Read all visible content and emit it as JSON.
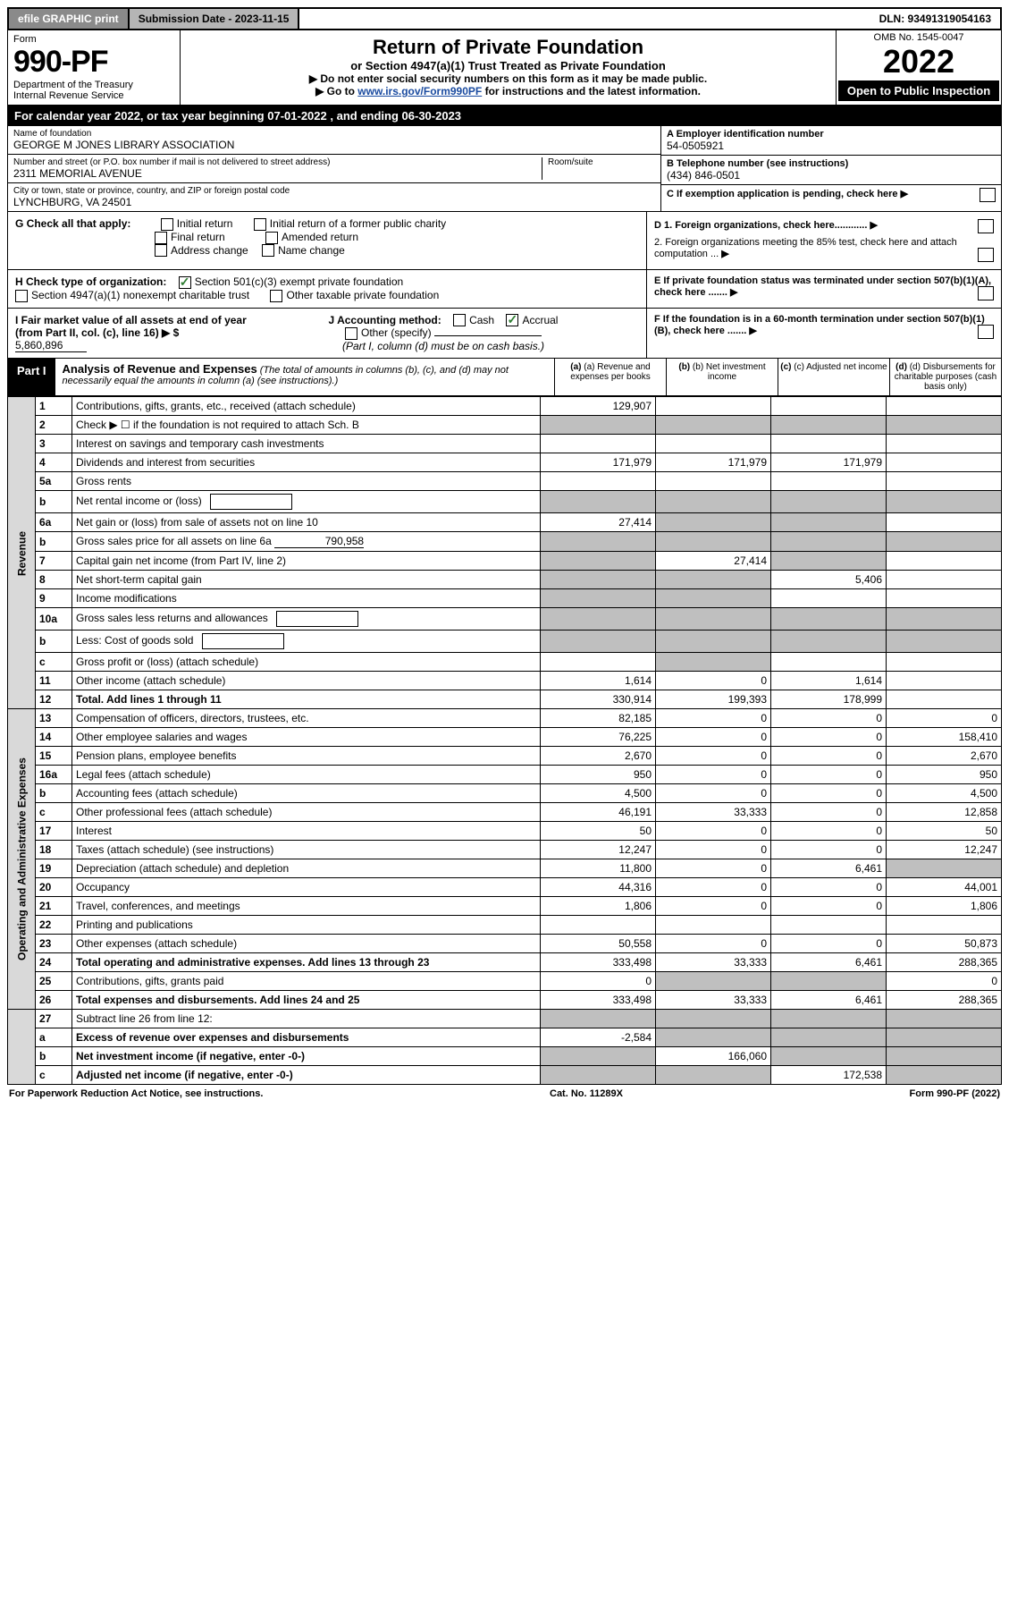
{
  "topbar": {
    "efile": "efile GRAPHIC print",
    "submission_label": "Submission Date - 2023-11-15",
    "dln": "DLN: 93491319054163"
  },
  "header": {
    "form_word": "Form",
    "form_number": "990-PF",
    "dept": "Department of the Treasury",
    "irs": "Internal Revenue Service",
    "title": "Return of Private Foundation",
    "subtitle": "or Section 4947(a)(1) Trust Treated as Private Foundation",
    "instr1": "▶ Do not enter social security numbers on this form as it may be made public.",
    "instr2_pre": "▶ Go to ",
    "instr2_link": "www.irs.gov/Form990PF",
    "instr2_post": " for instructions and the latest information.",
    "omb": "OMB No. 1545-0047",
    "year": "2022",
    "open": "Open to Public Inspection"
  },
  "band": {
    "text_pre": "For calendar year 2022, or tax year beginning ",
    "begin": "07-01-2022",
    "text_mid": " , and ending ",
    "end": "06-30-2023"
  },
  "entity": {
    "name_label": "Name of foundation",
    "name": "GEORGE M JONES LIBRARY ASSOCIATION",
    "addr_label": "Number and street (or P.O. box number if mail is not delivered to street address)",
    "addr": "2311 MEMORIAL AVENUE",
    "room_label": "Room/suite",
    "city_label": "City or town, state or province, country, and ZIP or foreign postal code",
    "city": "LYNCHBURG, VA  24501",
    "ein_label": "A Employer identification number",
    "ein": "54-0505921",
    "phone_label": "B Telephone number (see instructions)",
    "phone": "(434) 846-0501",
    "c_label": "C If exemption application is pending, check here"
  },
  "checks": {
    "g_label": "G Check all that apply:",
    "g_items": [
      "Initial return",
      "Initial return of a former public charity",
      "Final return",
      "Amended return",
      "Address change",
      "Name change"
    ],
    "h_label": "H Check type of organization:",
    "h1": "Section 501(c)(3) exempt private foundation",
    "h2": "Section 4947(a)(1) nonexempt charitable trust",
    "h3": "Other taxable private foundation",
    "i_label": "I Fair market value of all assets at end of year (from Part II, col. (c), line 16) ▶ $",
    "i_value": "5,860,896",
    "j_label": "J Accounting method:",
    "j_cash": "Cash",
    "j_accrual": "Accrual",
    "j_other": "Other (specify)",
    "j_note": "(Part I, column (d) must be on cash basis.)",
    "d1": "D 1. Foreign organizations, check here............",
    "d2": "2. Foreign organizations meeting the 85% test, check here and attach computation ...",
    "e": "E  If private foundation status was terminated under section 507(b)(1)(A), check here .......",
    "f": "F  If the foundation is in a 60-month termination under section 507(b)(1)(B), check here .......",
    "arrow": "▶"
  },
  "part1": {
    "label": "Part I",
    "title": "Analysis of Revenue and Expenses",
    "note": "(The total of amounts in columns (b), (c), and (d) may not necessarily equal the amounts in column (a) (see instructions).)",
    "col_a": "(a) Revenue and expenses per books",
    "col_b": "(b) Net investment income",
    "col_c": "(c) Adjusted net income",
    "col_d": "(d) Disbursements for charitable purposes (cash basis only)"
  },
  "sections": {
    "revenue": "Revenue",
    "opex": "Operating and Administrative Expenses"
  },
  "rows": [
    {
      "n": "1",
      "d": "Contributions, gifts, grants, etc., received (attach schedule)",
      "a": "129,907",
      "b": "",
      "c": "",
      "dd": ""
    },
    {
      "n": "2",
      "d": "Check ▶ ☐ if the foundation is not required to attach Sch. B",
      "a": "",
      "b": "",
      "c": "",
      "dd": "",
      "shadeA": true,
      "shadeB": true,
      "shadeC": true,
      "shadeD": true
    },
    {
      "n": "3",
      "d": "Interest on savings and temporary cash investments",
      "a": "",
      "b": "",
      "c": "",
      "dd": ""
    },
    {
      "n": "4",
      "d": "Dividends and interest from securities",
      "a": "171,979",
      "b": "171,979",
      "c": "171,979",
      "dd": ""
    },
    {
      "n": "5a",
      "d": "Gross rents",
      "a": "",
      "b": "",
      "c": "",
      "dd": ""
    },
    {
      "n": "b",
      "d": "Net rental income or (loss)",
      "a": "",
      "b": "",
      "c": "",
      "dd": "",
      "inlinebox": true,
      "shadeA": true,
      "shadeB": true,
      "shadeC": true,
      "shadeD": true
    },
    {
      "n": "6a",
      "d": "Net gain or (loss) from sale of assets not on line 10",
      "a": "27,414",
      "b": "",
      "c": "",
      "dd": "",
      "shadeB": true,
      "shadeC": true
    },
    {
      "n": "b",
      "d": "Gross sales price for all assets on line 6a",
      "a": "",
      "b": "",
      "c": "",
      "dd": "",
      "inlineval": "790,958",
      "shadeA": true,
      "shadeB": true,
      "shadeC": true,
      "shadeD": true
    },
    {
      "n": "7",
      "d": "Capital gain net income (from Part IV, line 2)",
      "a": "",
      "b": "27,414",
      "c": "",
      "dd": "",
      "shadeA": true,
      "shadeC": true
    },
    {
      "n": "8",
      "d": "Net short-term capital gain",
      "a": "",
      "b": "",
      "c": "5,406",
      "dd": "",
      "shadeA": true,
      "shadeB": true
    },
    {
      "n": "9",
      "d": "Income modifications",
      "a": "",
      "b": "",
      "c": "",
      "dd": "",
      "shadeA": true,
      "shadeB": true
    },
    {
      "n": "10a",
      "d": "Gross sales less returns and allowances",
      "a": "",
      "b": "",
      "c": "",
      "dd": "",
      "inlinebox": true,
      "shadeA": true,
      "shadeB": true,
      "shadeC": true,
      "shadeD": true
    },
    {
      "n": "b",
      "d": "Less: Cost of goods sold",
      "a": "",
      "b": "",
      "c": "",
      "dd": "",
      "inlinebox": true,
      "shadeA": true,
      "shadeB": true,
      "shadeC": true,
      "shadeD": true
    },
    {
      "n": "c",
      "d": "Gross profit or (loss) (attach schedule)",
      "a": "",
      "b": "",
      "c": "",
      "dd": "",
      "shadeB": true
    },
    {
      "n": "11",
      "d": "Other income (attach schedule)",
      "a": "1,614",
      "b": "0",
      "c": "1,614",
      "dd": ""
    },
    {
      "n": "12",
      "d": "Total. Add lines 1 through 11",
      "a": "330,914",
      "b": "199,393",
      "c": "178,999",
      "dd": "",
      "bold": true
    }
  ],
  "exp_rows": [
    {
      "n": "13",
      "d": "Compensation of officers, directors, trustees, etc.",
      "a": "82,185",
      "b": "0",
      "c": "0",
      "dd": "0"
    },
    {
      "n": "14",
      "d": "Other employee salaries and wages",
      "a": "76,225",
      "b": "0",
      "c": "0",
      "dd": "158,410"
    },
    {
      "n": "15",
      "d": "Pension plans, employee benefits",
      "a": "2,670",
      "b": "0",
      "c": "0",
      "dd": "2,670"
    },
    {
      "n": "16a",
      "d": "Legal fees (attach schedule)",
      "a": "950",
      "b": "0",
      "c": "0",
      "dd": "950"
    },
    {
      "n": "b",
      "d": "Accounting fees (attach schedule)",
      "a": "4,500",
      "b": "0",
      "c": "0",
      "dd": "4,500"
    },
    {
      "n": "c",
      "d": "Other professional fees (attach schedule)",
      "a": "46,191",
      "b": "33,333",
      "c": "0",
      "dd": "12,858"
    },
    {
      "n": "17",
      "d": "Interest",
      "a": "50",
      "b": "0",
      "c": "0",
      "dd": "50"
    },
    {
      "n": "18",
      "d": "Taxes (attach schedule) (see instructions)",
      "a": "12,247",
      "b": "0",
      "c": "0",
      "dd": "12,247"
    },
    {
      "n": "19",
      "d": "Depreciation (attach schedule) and depletion",
      "a": "11,800",
      "b": "0",
      "c": "6,461",
      "dd": "",
      "shadeD": true
    },
    {
      "n": "20",
      "d": "Occupancy",
      "a": "44,316",
      "b": "0",
      "c": "0",
      "dd": "44,001"
    },
    {
      "n": "21",
      "d": "Travel, conferences, and meetings",
      "a": "1,806",
      "b": "0",
      "c": "0",
      "dd": "1,806"
    },
    {
      "n": "22",
      "d": "Printing and publications",
      "a": "",
      "b": "",
      "c": "",
      "dd": ""
    },
    {
      "n": "23",
      "d": "Other expenses (attach schedule)",
      "a": "50,558",
      "b": "0",
      "c": "0",
      "dd": "50,873"
    },
    {
      "n": "24",
      "d": "Total operating and administrative expenses. Add lines 13 through 23",
      "a": "333,498",
      "b": "33,333",
      "c": "6,461",
      "dd": "288,365",
      "bold": true
    },
    {
      "n": "25",
      "d": "Contributions, gifts, grants paid",
      "a": "0",
      "b": "",
      "c": "",
      "dd": "0",
      "shadeB": true,
      "shadeC": true
    },
    {
      "n": "26",
      "d": "Total expenses and disbursements. Add lines 24 and 25",
      "a": "333,498",
      "b": "33,333",
      "c": "6,461",
      "dd": "288,365",
      "bold": true
    }
  ],
  "net_rows": [
    {
      "n": "27",
      "d": "Subtract line 26 from line 12:",
      "a": "",
      "b": "",
      "c": "",
      "dd": "",
      "shadeA": true,
      "shadeB": true,
      "shadeC": true,
      "shadeD": true
    },
    {
      "n": "a",
      "d": "Excess of revenue over expenses and disbursements",
      "a": "-2,584",
      "b": "",
      "c": "",
      "dd": "",
      "bold": true,
      "shadeB": true,
      "shadeC": true,
      "shadeD": true
    },
    {
      "n": "b",
      "d": "Net investment income (if negative, enter -0-)",
      "a": "",
      "b": "166,060",
      "c": "",
      "dd": "",
      "bold": true,
      "shadeA": true,
      "shadeC": true,
      "shadeD": true
    },
    {
      "n": "c",
      "d": "Adjusted net income (if negative, enter -0-)",
      "a": "",
      "b": "",
      "c": "172,538",
      "dd": "",
      "bold": true,
      "shadeA": true,
      "shadeB": true,
      "shadeD": true
    }
  ],
  "footer": {
    "left": "For Paperwork Reduction Act Notice, see instructions.",
    "mid": "Cat. No. 11289X",
    "right": "Form 990-PF (2022)"
  }
}
